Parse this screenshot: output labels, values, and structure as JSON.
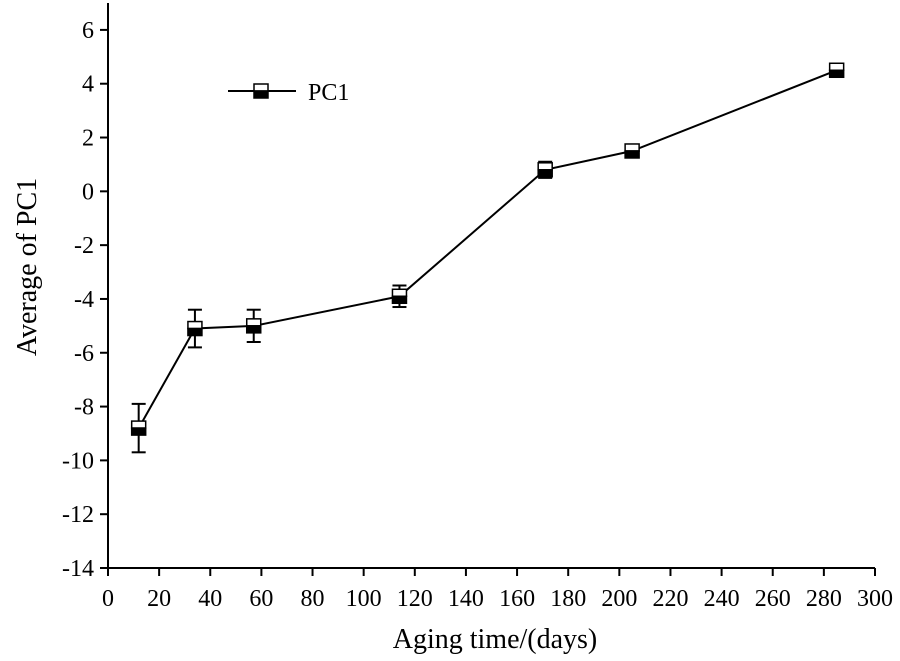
{
  "chart_data": {
    "type": "line",
    "xlabel": "Aging time/(days)",
    "ylabel": "Average of PC1",
    "xlim": [
      0,
      300
    ],
    "ylim": [
      -14,
      7
    ],
    "x_ticks": [
      0,
      20,
      40,
      60,
      80,
      100,
      120,
      140,
      160,
      180,
      200,
      220,
      240,
      260,
      280,
      300
    ],
    "y_ticks": [
      6,
      4,
      2,
      0,
      -2,
      -4,
      -6,
      -8,
      -10,
      -12,
      -14
    ],
    "grid": false,
    "legend_position": "top-left",
    "line_color": "#000000",
    "series": [
      {
        "name": "PC1",
        "x": [
          12,
          34,
          57,
          114,
          171,
          205,
          285
        ],
        "values": [
          -8.8,
          -5.1,
          -5.0,
          -3.9,
          0.8,
          1.5,
          4.5
        ],
        "error": [
          0.9,
          0.7,
          0.6,
          0.4,
          0.3,
          0.2,
          0.2
        ]
      }
    ]
  }
}
